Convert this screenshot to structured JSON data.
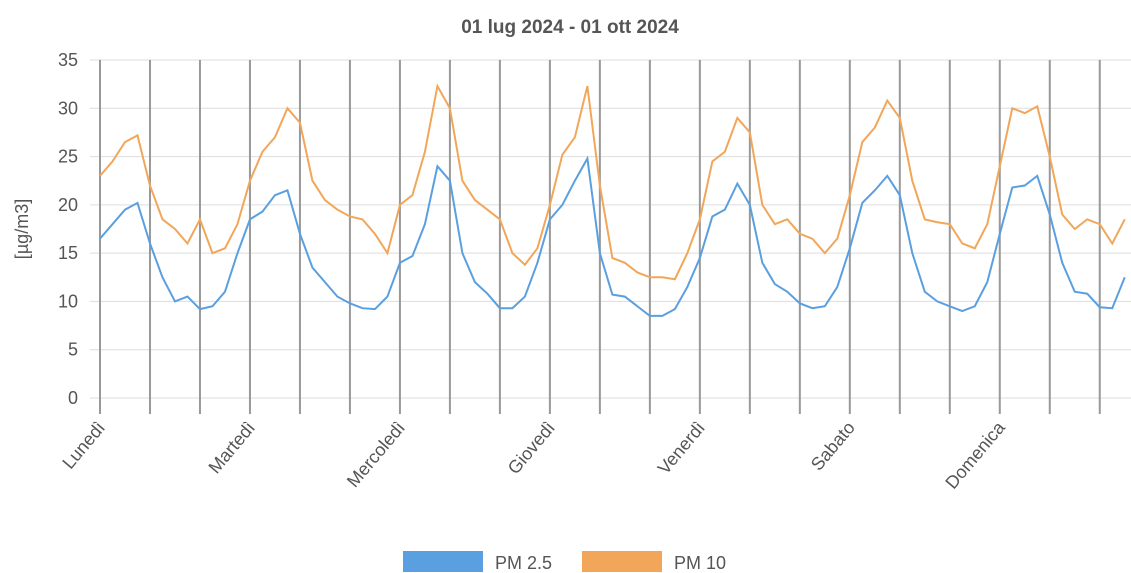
{
  "chart_data": {
    "type": "line",
    "title": "01 lug 2024 - 01 ott 2024",
    "ylabel": "[µg/m3]",
    "x": [
      0,
      2,
      4,
      6,
      8,
      10,
      12,
      14,
      16,
      18,
      20,
      22,
      24,
      26,
      28,
      30,
      32,
      34,
      36,
      38,
      40,
      42,
      44,
      46,
      48,
      50,
      52,
      54,
      56,
      58,
      60,
      62,
      64,
      66,
      68,
      70,
      72,
      74,
      76,
      78,
      80,
      82,
      84,
      86,
      88,
      90,
      92,
      94,
      96,
      98,
      100,
      102,
      104,
      106,
      108,
      110,
      112,
      114,
      116,
      118,
      120,
      122,
      124,
      126,
      128,
      130,
      132,
      134,
      136,
      138,
      140,
      142,
      144,
      146,
      148,
      150,
      152,
      154,
      156,
      158,
      160,
      162,
      164
    ],
    "series": [
      {
        "name": "PM 2.5",
        "color": "#5a9fe0",
        "values": [
          16.5,
          18,
          19.5,
          20.2,
          16,
          12.5,
          10,
          10.5,
          9.2,
          9.5,
          11,
          15,
          18.5,
          19.3,
          21,
          21.5,
          17,
          13.5,
          12,
          10.5,
          9.8,
          9.3,
          9.2,
          10.5,
          14,
          14.7,
          18,
          24,
          22.5,
          15,
          12,
          10.8,
          9.3,
          9.3,
          10.5,
          14,
          18.5,
          20,
          22.5,
          24.8,
          15,
          10.7,
          10.5,
          9.5,
          8.5,
          8.5,
          9.2,
          11.5,
          14.5,
          18.8,
          19.5,
          22.2,
          20,
          14,
          11.8,
          11,
          9.8,
          9.3,
          9.5,
          11.5,
          15.5,
          20.2,
          21.5,
          23,
          21,
          15,
          11,
          10,
          9.5,
          9,
          9.5,
          12,
          17,
          21.8,
          22,
          23,
          19,
          14,
          11,
          10.8,
          9.4,
          9.3,
          12.5
        ]
      },
      {
        "name": "PM 10",
        "color": "#f2a65a",
        "values": [
          23,
          24.5,
          26.5,
          27.2,
          22,
          18.5,
          17.5,
          16,
          18.5,
          15,
          15.5,
          18,
          22.5,
          25.5,
          27,
          30,
          28.5,
          22.5,
          20.5,
          19.5,
          18.8,
          18.5,
          17,
          15,
          20,
          21,
          25.5,
          32.3,
          30,
          22.5,
          20.5,
          19.5,
          18.5,
          15,
          13.8,
          15.5,
          20,
          25.2,
          27,
          32.3,
          22,
          14.5,
          14,
          13,
          12.5,
          12.5,
          12.3,
          15,
          18.5,
          24.5,
          25.5,
          29,
          27.5,
          20,
          18,
          18.5,
          17,
          16.5,
          15,
          16.5,
          21,
          26.5,
          28,
          30.8,
          29,
          22.5,
          18.5,
          18.2,
          18,
          16,
          15.5,
          18,
          24,
          30,
          29.5,
          30.2,
          25,
          19,
          17.5,
          18.5,
          18,
          16,
          18.5
        ]
      }
    ],
    "xlim": [
      0,
      165
    ],
    "xticks": [
      {
        "value": 0,
        "label": "Lunedì"
      },
      {
        "value": 24,
        "label": "Martedì"
      },
      {
        "value": 48,
        "label": "Mercoledì"
      },
      {
        "value": 72,
        "label": "Giovedì"
      },
      {
        "value": 96,
        "label": "Venerdì"
      },
      {
        "value": 120,
        "label": "Sabato"
      },
      {
        "value": 144,
        "label": "Domenica"
      }
    ],
    "minor_xticks": [
      8,
      16,
      32,
      40,
      56,
      64,
      80,
      88,
      104,
      112,
      128,
      136,
      152,
      160
    ],
    "ylim": [
      0,
      35
    ],
    "yticks": [
      0,
      5,
      10,
      15,
      20,
      25,
      30,
      35
    ],
    "grid": true,
    "legend": "bottom"
  }
}
